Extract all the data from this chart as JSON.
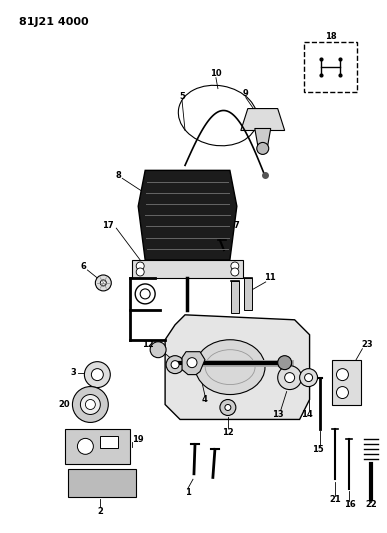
{
  "title": "81J21 4000",
  "bg": "#ffffff",
  "lc": "#000000",
  "fw": 3.87,
  "fh": 5.33,
  "dpi": 100
}
